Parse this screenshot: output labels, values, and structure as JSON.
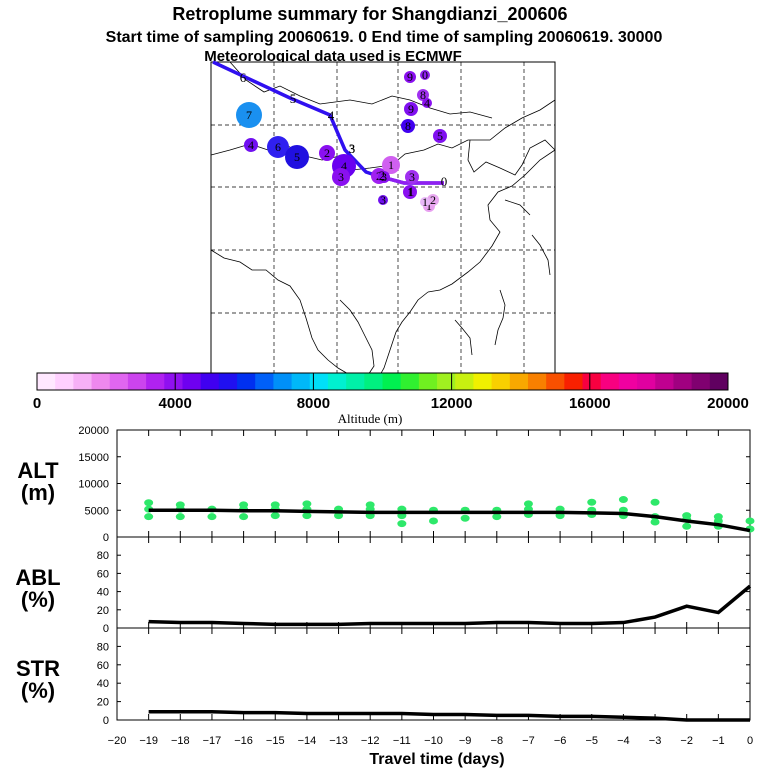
{
  "title": {
    "line1": "Retroplume summary for Shangdianzi_200606",
    "line2": "Start time of sampling 20060619.    0     End time of sampling 20060619. 30000",
    "line3": "Meteorological data used is ECMWF"
  },
  "colorbar": {
    "label": "Altitude (m)",
    "tick_labels": [
      "0",
      "4000",
      "8000",
      "12000",
      "16000",
      "20000"
    ],
    "colors": [
      "#ffe8ff",
      "#ffd0ff",
      "#f7b0f7",
      "#ee88ee",
      "#e066f0",
      "#cc44ee",
      "#b022f0",
      "#9010f0",
      "#6f00f0",
      "#4000f0",
      "#2010f0",
      "#0030f0",
      "#0060f8",
      "#0090f8",
      "#00b8f8",
      "#00e0f8",
      "#00f0d0",
      "#00f0a8",
      "#00f080",
      "#00f050",
      "#30f030",
      "#70f020",
      "#a0f020",
      "#c8f010",
      "#f0f000",
      "#f8d000",
      "#f8a800",
      "#f88000",
      "#f85000",
      "#f82000",
      "#f80040",
      "#f80080",
      "#f000a0",
      "#e000a0",
      "#c00090",
      "#a00080",
      "#800070",
      "#600060"
    ]
  },
  "map": {
    "track_labels": [
      "0",
      "1",
      "2",
      "3",
      "4",
      "5",
      "6"
    ],
    "cluster_labels": [
      {
        "label": "7",
        "color": "#1a90f0"
      },
      {
        "label": "6",
        "color": "#3020f0"
      },
      {
        "label": "5",
        "color": "#2010e0"
      },
      {
        "label": "4",
        "color": "#6a00f0"
      },
      {
        "label": "3",
        "color": "#8a10f0"
      },
      {
        "label": "3",
        "color": "#9a20f0"
      },
      {
        "label": "2",
        "color": "#8a10f0"
      },
      {
        "label": "2",
        "color": "#a020f0"
      },
      {
        "label": "1",
        "color": "#d060f0"
      },
      {
        "label": "1",
        "color": "#e8a0f0"
      },
      {
        "label": "2",
        "color": "#e8a8f0"
      },
      {
        "label": "1",
        "color": "#e8b8f8"
      },
      {
        "label": "3",
        "color": "#a030f0"
      },
      {
        "label": "1",
        "color": "#8a10f0"
      },
      {
        "label": "9",
        "color": "#8a10f0"
      },
      {
        "label": "0",
        "color": "#9020f0"
      },
      {
        "label": "8",
        "color": "#a030f0"
      },
      {
        "label": "9",
        "color": "#8010f0"
      },
      {
        "label": "8",
        "color": "#4000f0"
      },
      {
        "label": "5",
        "color": "#8010f0"
      },
      {
        "label": "3",
        "color": "#7010f0"
      },
      {
        "label": "4",
        "color": "#7010f0"
      },
      {
        "label": "4",
        "color": "#8a10f0"
      },
      {
        "label": "3",
        "color": "#8a10f0"
      }
    ]
  },
  "chart_data": [
    {
      "type": "line",
      "panel": "ALT",
      "ylabel_top": "ALT",
      "ylabel_bottom": "(m)",
      "ylim": [
        0,
        20000
      ],
      "yticks": [
        "0",
        "5000",
        "10000",
        "15000",
        "20000"
      ],
      "x": [
        0,
        -1,
        -2,
        -3,
        -4,
        -5,
        -6,
        -7,
        -8,
        -9,
        -10,
        -11,
        -12,
        -13,
        -14,
        -15,
        -16,
        -17,
        -18,
        -19
      ],
      "values": [
        1200,
        2300,
        3000,
        3800,
        4400,
        4500,
        4600,
        4600,
        4600,
        4600,
        4600,
        4600,
        4600,
        4700,
        4800,
        4900,
        4900,
        5000,
        5000,
        5000
      ],
      "scatter_x": [
        0,
        0,
        -1,
        -1,
        -1,
        -2,
        -2,
        -2,
        -3,
        -3,
        -3,
        -4,
        -4,
        -4,
        -5,
        -5,
        -5,
        -6,
        -6,
        -7,
        -7,
        -7,
        -8,
        -8,
        -9,
        -9,
        -10,
        -10,
        -11,
        -11,
        -11,
        -12,
        -12,
        -12,
        -13,
        -13,
        -14,
        -14,
        -14,
        -15,
        -15,
        -15,
        -16,
        -16,
        -16,
        -17,
        -17,
        -18,
        -18,
        -18,
        -19,
        -19,
        -19
      ],
      "scatter_y": [
        1500,
        3000,
        2000,
        3000,
        3800,
        2000,
        3300,
        4000,
        2800,
        3800,
        6500,
        4000,
        5000,
        7000,
        4200,
        5000,
        6500,
        4000,
        5200,
        4200,
        5200,
        6200,
        3800,
        5000,
        3500,
        5000,
        3000,
        5000,
        2500,
        4000,
        5200,
        4000,
        5200,
        6000,
        4000,
        5200,
        4000,
        5200,
        6200,
        4000,
        5200,
        6000,
        3800,
        5200,
        6000,
        3800,
        5200,
        3800,
        5200,
        6000,
        3800,
        5200,
        6400
      ]
    },
    {
      "type": "line",
      "panel": "ABL",
      "ylabel_top": "ABL",
      "ylabel_bottom": "(%)",
      "ylim": [
        0,
        100
      ],
      "yticks": [
        "0",
        "20",
        "40",
        "60",
        "80"
      ],
      "x": [
        0,
        -1,
        -2,
        -3,
        -4,
        -5,
        -6,
        -7,
        -8,
        -9,
        -10,
        -11,
        -12,
        -13,
        -14,
        -15,
        -16,
        -17,
        -18,
        -19
      ],
      "values": [
        46,
        17,
        24,
        12,
        6,
        5,
        5,
        6,
        6,
        5,
        5,
        5,
        5,
        4,
        4,
        4,
        5,
        6,
        6,
        7
      ]
    },
    {
      "type": "line",
      "panel": "STR",
      "ylabel_top": "STR",
      "ylabel_bottom": "(%)",
      "ylim": [
        0,
        100
      ],
      "yticks": [
        "0",
        "20",
        "40",
        "60",
        "80"
      ],
      "x": [
        0,
        -1,
        -2,
        -3,
        -4,
        -5,
        -6,
        -7,
        -8,
        -9,
        -10,
        -11,
        -12,
        -13,
        -14,
        -15,
        -16,
        -17,
        -18,
        -19
      ],
      "values": [
        0,
        0,
        0,
        2,
        3,
        4,
        4,
        5,
        5,
        6,
        6,
        7,
        7,
        7,
        7,
        8,
        8,
        9,
        9,
        9
      ],
      "xlabel": "Travel time (days)",
      "xticks": [
        "−20",
        "−19",
        "−18",
        "−17",
        "−16",
        "−15",
        "−14",
        "−13",
        "−12",
        "−11",
        "−10",
        "−9",
        "−8",
        "−7",
        "−6",
        "−5",
        "−4",
        "−3",
        "−2",
        "−1",
        "0"
      ]
    }
  ]
}
